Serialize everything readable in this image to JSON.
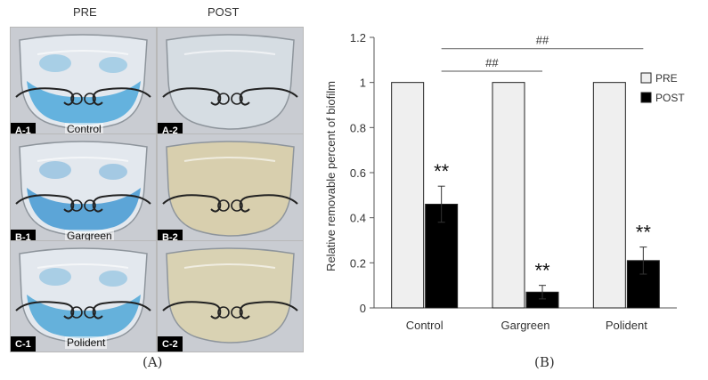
{
  "panel_a": {
    "column_headers": [
      "PRE",
      "POST"
    ],
    "rows": [
      {
        "group": "Control",
        "pre_badge": "A-1",
        "post_badge": "A-2",
        "stain": "#3aa0d8",
        "post_tint": "#d6dde3"
      },
      {
        "group": "Gargreen",
        "pre_badge": "B-1",
        "post_badge": "B-2",
        "stain": "#2f8fcf",
        "post_tint": "#d8cfae"
      },
      {
        "group": "Polident",
        "pre_badge": "C-1",
        "post_badge": "C-2",
        "stain": "#3b9fd4",
        "post_tint": "#d9d2b3"
      }
    ],
    "caption": "(A)"
  },
  "panel_b_caption": "(B)",
  "chart_data": {
    "type": "bar",
    "categories": [
      "Control",
      "Gargreen",
      "Polident"
    ],
    "series": [
      {
        "name": "PRE",
        "values": [
          1,
          1,
          1
        ],
        "errors": [
          0,
          0,
          0
        ],
        "color": "#efefef"
      },
      {
        "name": "POST",
        "values": [
          0.46,
          0.07,
          0.21
        ],
        "errors": [
          0.08,
          0.03,
          0.06
        ],
        "color": "#000000"
      }
    ],
    "significance": [
      "**",
      "**",
      "**"
    ],
    "comparisons": [
      {
        "from": "Control",
        "to": "Gargreen",
        "label": "##"
      },
      {
        "from": "Control",
        "to": "Polident",
        "label": "##"
      }
    ],
    "ylabel": "Relative removable percent of biofilm",
    "xlabel": "",
    "ylim": [
      0,
      1.2
    ],
    "yticks": [
      0,
      0.2,
      0.4,
      0.6,
      0.8,
      1,
      1.2
    ],
    "legend_placement": "top-right",
    "grid": false
  }
}
